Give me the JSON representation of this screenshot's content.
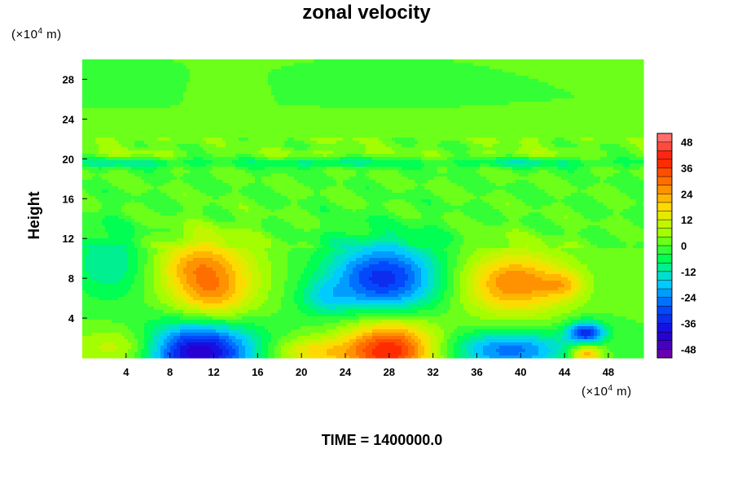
{
  "chart_data": {
    "type": "heatmap",
    "title": "zonal velocity",
    "xlabel": "",
    "ylabel": "Height",
    "x_unit": {
      "prefix": "(×10",
      "exp": "4",
      "suffix": " m)"
    },
    "y_unit": {
      "prefix": "(×10",
      "exp": "4",
      "suffix": " m)"
    },
    "footer": "TIME = 1400000.0",
    "xlim": [
      0,
      51.2
    ],
    "ylim": [
      0,
      30
    ],
    "xticks": [
      4,
      8,
      12,
      16,
      20,
      24,
      28,
      32,
      36,
      40,
      44,
      48
    ],
    "yticks": [
      4,
      8,
      12,
      16,
      20,
      24,
      28
    ],
    "colorbar": {
      "range": [
        -52,
        52
      ],
      "ticks": [
        48,
        36,
        24,
        12,
        0,
        -12,
        -24,
        -36,
        -48
      ]
    },
    "colors": {
      "scale": [
        "#7a00a6",
        "#1a00d9",
        "#0050ff",
        "#00d2ff",
        "#00ff50",
        "#a0ff00",
        "#ffe000",
        "#ff7800",
        "#ff1800",
        "#ff8080"
      ]
    },
    "features": [
      {
        "kind": "jet",
        "x": 11.5,
        "y": 8.8,
        "amplitude": 22,
        "sx": 3.2,
        "sy": 2.4
      },
      {
        "kind": "jet",
        "x": 12.0,
        "y": 6.0,
        "amplitude": 14,
        "sx": 2.4,
        "sy": 1.6
      },
      {
        "kind": "jet",
        "x": 10.0,
        "y": 9.5,
        "amplitude": 6,
        "sx": 2.0,
        "sy": 1.5
      },
      {
        "kind": "jet",
        "x": 27.5,
        "y": 8.0,
        "amplitude": -34,
        "sx": 3.6,
        "sy": 2.6
      },
      {
        "kind": "jet",
        "x": 22.0,
        "y": 6.0,
        "amplitude": -10,
        "sx": 1.6,
        "sy": 1.2
      },
      {
        "kind": "jet",
        "x": 39.5,
        "y": 7.5,
        "amplitude": 28,
        "sx": 3.4,
        "sy": 2.2
      },
      {
        "kind": "jet",
        "x": 44.0,
        "y": 7.3,
        "amplitude": 12,
        "sx": 1.3,
        "sy": 1.0
      },
      {
        "kind": "jet",
        "x": 10.5,
        "y": 0.6,
        "amplitude": -44,
        "sx": 3.6,
        "sy": 2.0
      },
      {
        "kind": "jet",
        "x": 28.0,
        "y": 0.8,
        "amplitude": 40,
        "sx": 3.0,
        "sy": 2.2
      },
      {
        "kind": "jet",
        "x": 39.0,
        "y": 0.8,
        "amplitude": -26,
        "sx": 3.8,
        "sy": 1.3
      },
      {
        "kind": "jet",
        "x": 46.0,
        "y": 2.5,
        "amplitude": -34,
        "sx": 1.2,
        "sy": 0.8
      },
      {
        "kind": "jet",
        "x": 46.0,
        "y": 0.4,
        "amplitude": 26,
        "sx": 1.0,
        "sy": 0.8
      },
      {
        "kind": "jet",
        "x": 21.0,
        "y": 0.6,
        "amplitude": 16,
        "sx": 2.6,
        "sy": 1.0
      },
      {
        "kind": "jet",
        "x": 2.5,
        "y": 9.5,
        "amplitude": -12,
        "sx": 2.5,
        "sy": 2.5
      },
      {
        "kind": "jet",
        "x": 4.0,
        "y": 1.0,
        "amplitude": 14,
        "sx": 3.0,
        "sy": 1.4
      },
      {
        "kind": "layer",
        "y": 19.6,
        "amplitude": -10,
        "sy": 0.35
      },
      {
        "kind": "layer",
        "y": 20.6,
        "amplitude": 5,
        "sy": 0.35
      },
      {
        "kind": "layer",
        "y": 22.0,
        "amplitude": 4,
        "sy": 0.5
      }
    ]
  }
}
